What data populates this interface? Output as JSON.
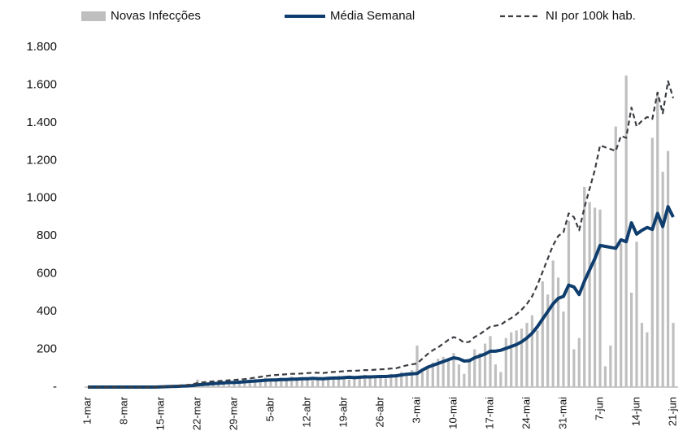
{
  "chart_data": {
    "type": "combo",
    "categories": [
      "1-mar",
      null,
      null,
      null,
      null,
      null,
      null,
      "8-mar",
      null,
      null,
      null,
      null,
      null,
      null,
      "15-mar",
      null,
      null,
      null,
      null,
      null,
      null,
      "22-mar",
      null,
      null,
      null,
      null,
      null,
      null,
      "29-mar",
      null,
      null,
      null,
      null,
      null,
      null,
      "5-abr",
      null,
      null,
      null,
      null,
      null,
      null,
      "12-abr",
      null,
      null,
      null,
      null,
      null,
      null,
      "19-abr",
      null,
      null,
      null,
      null,
      null,
      null,
      "26-abr",
      null,
      null,
      null,
      null,
      null,
      null,
      "3-mai",
      null,
      null,
      null,
      null,
      null,
      null,
      "10-mai",
      null,
      null,
      null,
      null,
      null,
      null,
      "17-mai",
      null,
      null,
      null,
      null,
      null,
      null,
      "24-mai",
      null,
      null,
      null,
      null,
      null,
      null,
      "31-mai",
      null,
      null,
      null,
      null,
      null,
      null,
      "7-jun",
      null,
      null,
      null,
      null,
      null,
      null,
      "14-jun",
      null,
      null,
      null,
      null,
      null,
      null,
      "21-jun"
    ],
    "series": [
      {
        "name": "Novas Infecções",
        "type": "bar",
        "color": "#bfbfbf",
        "values": [
          0,
          0,
          0,
          0,
          0,
          0,
          0,
          0,
          0,
          0,
          0,
          0,
          0,
          0,
          2,
          2,
          5,
          5,
          8,
          6,
          10,
          40,
          15,
          25,
          20,
          30,
          15,
          35,
          30,
          20,
          35,
          40,
          45,
          25,
          50,
          45,
          30,
          50,
          40,
          55,
          35,
          50,
          50,
          35,
          45,
          40,
          55,
          50,
          60,
          55,
          40,
          60,
          50,
          65,
          55,
          60,
          60,
          45,
          70,
          65,
          80,
          75,
          90,
          220,
          80,
          100,
          130,
          150,
          160,
          140,
          180,
          120,
          70,
          150,
          200,
          180,
          230,
          270,
          120,
          80,
          260,
          290,
          300,
          310,
          340,
          380,
          300,
          560,
          490,
          670,
          580,
          400,
          880,
          200,
          260,
          1060,
          980,
          950,
          940,
          110,
          220,
          1380,
          760,
          1650,
          500,
          770,
          340,
          290,
          1320,
          1560,
          1140,
          1250,
          340
        ]
      },
      {
        "name": "Média Semanal",
        "type": "line",
        "color": "#0f3e6e",
        "values": [
          0,
          0,
          0,
          0,
          0,
          0,
          0,
          0,
          0,
          0,
          0,
          0,
          0,
          0,
          1,
          2,
          3,
          4,
          5,
          6,
          8,
          12,
          14,
          16,
          18,
          20,
          22,
          24,
          24,
          26,
          28,
          30,
          32,
          34,
          36,
          38,
          38,
          40,
          40,
          42,
          42,
          44,
          44,
          46,
          45,
          44,
          46,
          48,
          48,
          50,
          52,
          50,
          52,
          54,
          54,
          55,
          56,
          56,
          58,
          60,
          64,
          68,
          70,
          72,
          90,
          105,
          115,
          125,
          135,
          145,
          155,
          150,
          138,
          140,
          155,
          165,
          175,
          190,
          190,
          195,
          205,
          215,
          225,
          240,
          260,
          285,
          320,
          360,
          400,
          440,
          470,
          480,
          540,
          530,
          490,
          560,
          620,
          680,
          750,
          745,
          740,
          735,
          780,
          770,
          870,
          810,
          830,
          845,
          835,
          920,
          850,
          955,
          900
        ]
      },
      {
        "name": "NI por 100k hab.",
        "type": "line",
        "dash": true,
        "color": "#3a3d42",
        "values": [
          0,
          0,
          0,
          0,
          0,
          0,
          0,
          0,
          0,
          0,
          0,
          0,
          0,
          0,
          2,
          3,
          5,
          7,
          9,
          11,
          14,
          22,
          25,
          28,
          30,
          32,
          34,
          36,
          38,
          40,
          42,
          46,
          50,
          54,
          58,
          62,
          64,
          66,
          68,
          70,
          70,
          72,
          74,
          76,
          76,
          74,
          78,
          80,
          82,
          84,
          86,
          86,
          88,
          90,
          90,
          92,
          94,
          95,
          98,
          100,
          108,
          115,
          120,
          125,
          150,
          175,
          195,
          210,
          230,
          250,
          265,
          255,
          235,
          240,
          265,
          280,
          300,
          320,
          325,
          330,
          350,
          365,
          385,
          410,
          440,
          480,
          540,
          610,
          680,
          750,
          800,
          820,
          920,
          900,
          830,
          950,
          1050,
          1150,
          1280,
          1270,
          1260,
          1250,
          1330,
          1320,
          1480,
          1380,
          1410,
          1430,
          1420,
          1560,
          1450,
          1620,
          1530
        ]
      }
    ],
    "ylim": [
      0,
      1800
    ],
    "yticks": [
      {
        "value": 0,
        "label": "-"
      },
      200,
      400,
      600,
      800,
      {
        "value": 1000,
        "label": "1.000"
      },
      {
        "value": 1200,
        "label": "1.200"
      },
      {
        "value": 1400,
        "label": "1.400"
      },
      {
        "value": 1600,
        "label": "1.600"
      },
      {
        "value": 1800,
        "label": "1.800"
      }
    ],
    "legend": "top",
    "grid": false
  }
}
